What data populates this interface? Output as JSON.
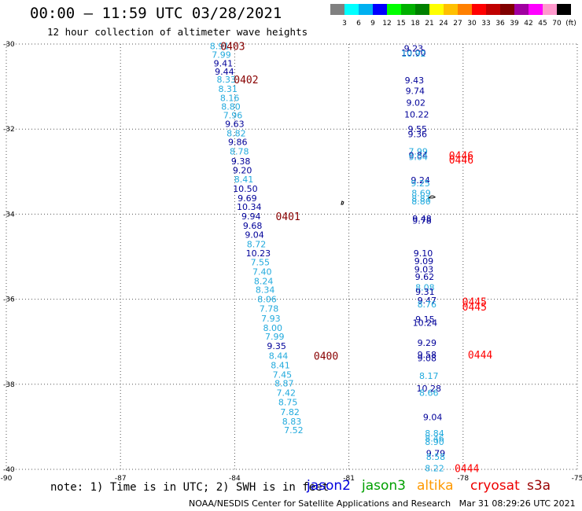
{
  "header": {
    "title": "00:00 – 11:59 UTC 03/28/2021",
    "subtitle": "12 hour collection of altimeter wave heights"
  },
  "legend_scale": {
    "colors": [
      "#808080",
      "#00ffff",
      "#00b0f0",
      "#0000ff",
      "#00ff00",
      "#00b000",
      "#008000",
      "#ffff00",
      "#ffc000",
      "#ff8000",
      "#ff0000",
      "#c00000",
      "#800000",
      "#a000a0",
      "#ff00ff",
      "#ff99cc",
      "#000000"
    ],
    "labels": [
      "3",
      "6",
      "9",
      "12",
      "15",
      "18",
      "21",
      "24",
      "27",
      "30",
      "33",
      "36",
      "39",
      "42",
      "45",
      "70",
      "(ft)"
    ]
  },
  "footer": {
    "note": "note: 1) Time is in UTC; 2) SWH is in feet",
    "credit": "NOAA/NESDIS Center for Satellite Applications and Research   Mar 31 08:29:26 UTC 2021",
    "satellites": [
      {
        "name": "jason2",
        "color": "#0000dd"
      },
      {
        "name": "jason3",
        "color": "#00a000"
      },
      {
        "name": "altika",
        "color": "#ff9900"
      },
      {
        "name": "cryosat",
        "color": "#ee0000"
      },
      {
        "name": "s3a",
        "color": "#990000"
      }
    ]
  },
  "chart_data": {
    "type": "scatter",
    "xlim": [
      -90,
      -75
    ],
    "ylim": [
      -40,
      -30
    ],
    "x_ticks": [
      -90,
      -87,
      -84,
      -81,
      -78,
      -75
    ],
    "y_ticks": [
      -30,
      -32,
      -34,
      -36,
      -38,
      -40
    ],
    "x_tick_labels": [
      "-90",
      "-87",
      "-84",
      "-81",
      "-78",
      "-75"
    ],
    "y_tick_labels": [
      "-30",
      "-32",
      "-34",
      "-36",
      "-38",
      "-40"
    ],
    "grid": true,
    "colors": {
      "light": "#22aadd",
      "dark": "#000099",
      "red": "#ff0000",
      "maroon": "#880000"
    },
    "points": [
      {
        "x": -84.4,
        "y": -30.05,
        "v": "8.91",
        "c": "light"
      },
      {
        "x": -84.35,
        "y": -30.25,
        "v": "7.99",
        "c": "light"
      },
      {
        "x": -84.3,
        "y": -30.45,
        "v": "9.41",
        "c": "dark"
      },
      {
        "x": -84.27,
        "y": -30.65,
        "v": "9.44",
        "c": "dark"
      },
      {
        "x": -84.22,
        "y": -30.83,
        "v": "8.33",
        "c": "light"
      },
      {
        "x": -84.18,
        "y": -31.05,
        "v": "8.31",
        "c": "light"
      },
      {
        "x": -84.13,
        "y": -31.27,
        "v": "8.16",
        "c": "light"
      },
      {
        "x": -84.1,
        "y": -31.47,
        "v": "8.80",
        "c": "light"
      },
      {
        "x": -84.05,
        "y": -31.67,
        "v": "7.96",
        "c": "light"
      },
      {
        "x": -84.0,
        "y": -31.88,
        "v": "9.63",
        "c": "dark"
      },
      {
        "x": -83.96,
        "y": -32.1,
        "v": "8.82",
        "c": "light"
      },
      {
        "x": -83.92,
        "y": -32.3,
        "v": "9.86",
        "c": "dark"
      },
      {
        "x": -83.88,
        "y": -32.52,
        "v": "8.78",
        "c": "light"
      },
      {
        "x": -83.84,
        "y": -32.75,
        "v": "9.38",
        "c": "dark"
      },
      {
        "x": -83.8,
        "y": -32.97,
        "v": "9.20",
        "c": "dark"
      },
      {
        "x": -83.76,
        "y": -33.18,
        "v": "8.41",
        "c": "light"
      },
      {
        "x": -83.72,
        "y": -33.4,
        "v": "10.50",
        "c": "dark"
      },
      {
        "x": -83.67,
        "y": -33.62,
        "v": "9.69",
        "c": "dark"
      },
      {
        "x": -83.62,
        "y": -33.83,
        "v": "10.34",
        "c": "dark"
      },
      {
        "x": -83.57,
        "y": -34.05,
        "v": "9.94",
        "c": "dark"
      },
      {
        "x": -83.53,
        "y": -34.27,
        "v": "9.68",
        "c": "dark"
      },
      {
        "x": -83.48,
        "y": -34.48,
        "v": "9.04",
        "c": "dark"
      },
      {
        "x": -83.43,
        "y": -34.7,
        "v": "8.72",
        "c": "light"
      },
      {
        "x": -83.38,
        "y": -34.92,
        "v": "10.23",
        "c": "dark"
      },
      {
        "x": -83.33,
        "y": -35.13,
        "v": "7.55",
        "c": "light"
      },
      {
        "x": -83.28,
        "y": -35.35,
        "v": "7.40",
        "c": "light"
      },
      {
        "x": -83.24,
        "y": -35.57,
        "v": "8.24",
        "c": "light"
      },
      {
        "x": -83.2,
        "y": -35.78,
        "v": "8.34",
        "c": "light"
      },
      {
        "x": -83.15,
        "y": -36.0,
        "v": "8.06",
        "c": "light"
      },
      {
        "x": -83.1,
        "y": -36.22,
        "v": "7.78",
        "c": "light"
      },
      {
        "x": -83.05,
        "y": -36.45,
        "v": "7.93",
        "c": "light"
      },
      {
        "x": -83.0,
        "y": -36.67,
        "v": "8.00",
        "c": "light"
      },
      {
        "x": -82.95,
        "y": -36.88,
        "v": "7.99",
        "c": "light"
      },
      {
        "x": -82.9,
        "y": -37.1,
        "v": "9.35",
        "c": "dark"
      },
      {
        "x": -82.85,
        "y": -37.33,
        "v": "8.44",
        "c": "light"
      },
      {
        "x": -82.8,
        "y": -37.55,
        "v": "8.41",
        "c": "light"
      },
      {
        "x": -82.75,
        "y": -37.77,
        "v": "7.45",
        "c": "light"
      },
      {
        "x": -82.7,
        "y": -37.98,
        "v": "8.87",
        "c": "light"
      },
      {
        "x": -82.65,
        "y": -38.2,
        "v": "7.42",
        "c": "light"
      },
      {
        "x": -82.6,
        "y": -38.42,
        "v": "8.75",
        "c": "light"
      },
      {
        "x": -82.55,
        "y": -38.65,
        "v": "7.82",
        "c": "light"
      },
      {
        "x": -82.5,
        "y": -38.87,
        "v": "8.83",
        "c": "light"
      },
      {
        "x": -82.45,
        "y": -39.08,
        "v": "7.52",
        "c": "light"
      },
      {
        "x": -79.3,
        "y": -30.1,
        "v": "9.23",
        "c": "dark"
      },
      {
        "x": -79.3,
        "y": -30.2,
        "v": "10.00",
        "c": "dark"
      },
      {
        "x": -79.3,
        "y": -30.22,
        "v": "10.92",
        "c": "light"
      },
      {
        "x": -79.28,
        "y": -30.85,
        "v": "9.43",
        "c": "dark"
      },
      {
        "x": -79.26,
        "y": -31.1,
        "v": "9.74",
        "c": "dark"
      },
      {
        "x": -79.24,
        "y": -31.38,
        "v": "9.02",
        "c": "dark"
      },
      {
        "x": -79.22,
        "y": -31.65,
        "v": "10.22",
        "c": "dark"
      },
      {
        "x": -79.2,
        "y": -32.0,
        "v": "9.55",
        "c": "dark"
      },
      {
        "x": -79.2,
        "y": -32.12,
        "v": "9.36",
        "c": "dark"
      },
      {
        "x": -79.18,
        "y": -32.52,
        "v": "7.99",
        "c": "light"
      },
      {
        "x": -79.18,
        "y": -32.62,
        "v": "9.84",
        "c": "dark"
      },
      {
        "x": -79.18,
        "y": -32.65,
        "v": "9.04",
        "c": "light"
      },
      {
        "x": -79.12,
        "y": -33.2,
        "v": "9.24",
        "c": "dark"
      },
      {
        "x": -79.12,
        "y": -33.27,
        "v": "9.25",
        "c": "light"
      },
      {
        "x": -79.1,
        "y": -33.5,
        "v": "8.69",
        "c": "light"
      },
      {
        "x": -79.1,
        "y": -33.63,
        "v": "8.81",
        "c": "light"
      },
      {
        "x": -79.1,
        "y": -33.7,
        "v": "8.80",
        "c": "light"
      },
      {
        "x": -79.08,
        "y": -34.1,
        "v": "9.48",
        "c": "dark"
      },
      {
        "x": -79.08,
        "y": -34.15,
        "v": "9.78",
        "c": "dark"
      },
      {
        "x": -79.05,
        "y": -34.92,
        "v": "9.10",
        "c": "dark"
      },
      {
        "x": -79.03,
        "y": -35.1,
        "v": "9.09",
        "c": "dark"
      },
      {
        "x": -79.03,
        "y": -35.3,
        "v": "9.03",
        "c": "dark"
      },
      {
        "x": -79.01,
        "y": -35.47,
        "v": "9.62",
        "c": "dark"
      },
      {
        "x": -79.0,
        "y": -35.72,
        "v": "8.08",
        "c": "light"
      },
      {
        "x": -79.0,
        "y": -35.82,
        "v": "9.31",
        "c": "dark"
      },
      {
        "x": -78.95,
        "y": -36.03,
        "v": "9.47",
        "c": "dark"
      },
      {
        "x": -78.95,
        "y": -36.12,
        "v": "8.76",
        "c": "light"
      },
      {
        "x": -79.0,
        "y": -36.47,
        "v": "9.15",
        "c": "dark"
      },
      {
        "x": -79.0,
        "y": -36.55,
        "v": "10.24",
        "c": "dark"
      },
      {
        "x": -78.95,
        "y": -37.02,
        "v": "9.29",
        "c": "dark"
      },
      {
        "x": -78.95,
        "y": -37.3,
        "v": "9.58",
        "c": "dark"
      },
      {
        "x": -78.95,
        "y": -37.38,
        "v": "9.08",
        "c": "dark"
      },
      {
        "x": -78.9,
        "y": -37.8,
        "v": "8.17",
        "c": "light"
      },
      {
        "x": -78.9,
        "y": -38.1,
        "v": "10.28",
        "c": "dark"
      },
      {
        "x": -78.9,
        "y": -38.2,
        "v": "8.66",
        "c": "light"
      },
      {
        "x": -78.8,
        "y": -38.77,
        "v": "9.04",
        "c": "dark"
      },
      {
        "x": -78.75,
        "y": -39.15,
        "v": "8.84",
        "c": "light"
      },
      {
        "x": -78.75,
        "y": -39.27,
        "v": "8.46",
        "c": "light"
      },
      {
        "x": -78.75,
        "y": -39.35,
        "v": "8.90",
        "c": "light"
      },
      {
        "x": -78.72,
        "y": -39.62,
        "v": "9.79",
        "c": "dark"
      },
      {
        "x": -78.72,
        "y": -39.7,
        "v": "8.58",
        "c": "light"
      },
      {
        "x": -78.75,
        "y": -39.97,
        "v": "8.22",
        "c": "light"
      }
    ],
    "pass_labels": [
      {
        "x": -84.05,
        "y": -30.05,
        "label": "0403",
        "c": "maroon"
      },
      {
        "x": -83.7,
        "y": -30.83,
        "label": "0402",
        "c": "maroon"
      },
      {
        "x": -82.6,
        "y": -34.05,
        "label": "0401",
        "c": "maroon"
      },
      {
        "x": -81.6,
        "y": -37.33,
        "label": "0400",
        "c": "maroon"
      },
      {
        "x": -78.05,
        "y": -32.62,
        "label": "0446",
        "c": "red"
      },
      {
        "x": -78.05,
        "y": -32.72,
        "label": "0446",
        "c": "red"
      },
      {
        "x": -77.7,
        "y": -36.05,
        "label": "0445",
        "c": "red"
      },
      {
        "x": -77.7,
        "y": -36.17,
        "label": "0445",
        "c": "red"
      },
      {
        "x": -77.55,
        "y": -37.3,
        "label": "0444",
        "c": "red"
      },
      {
        "x": -77.9,
        "y": -39.97,
        "label": "0444",
        "c": "red"
      }
    ]
  }
}
